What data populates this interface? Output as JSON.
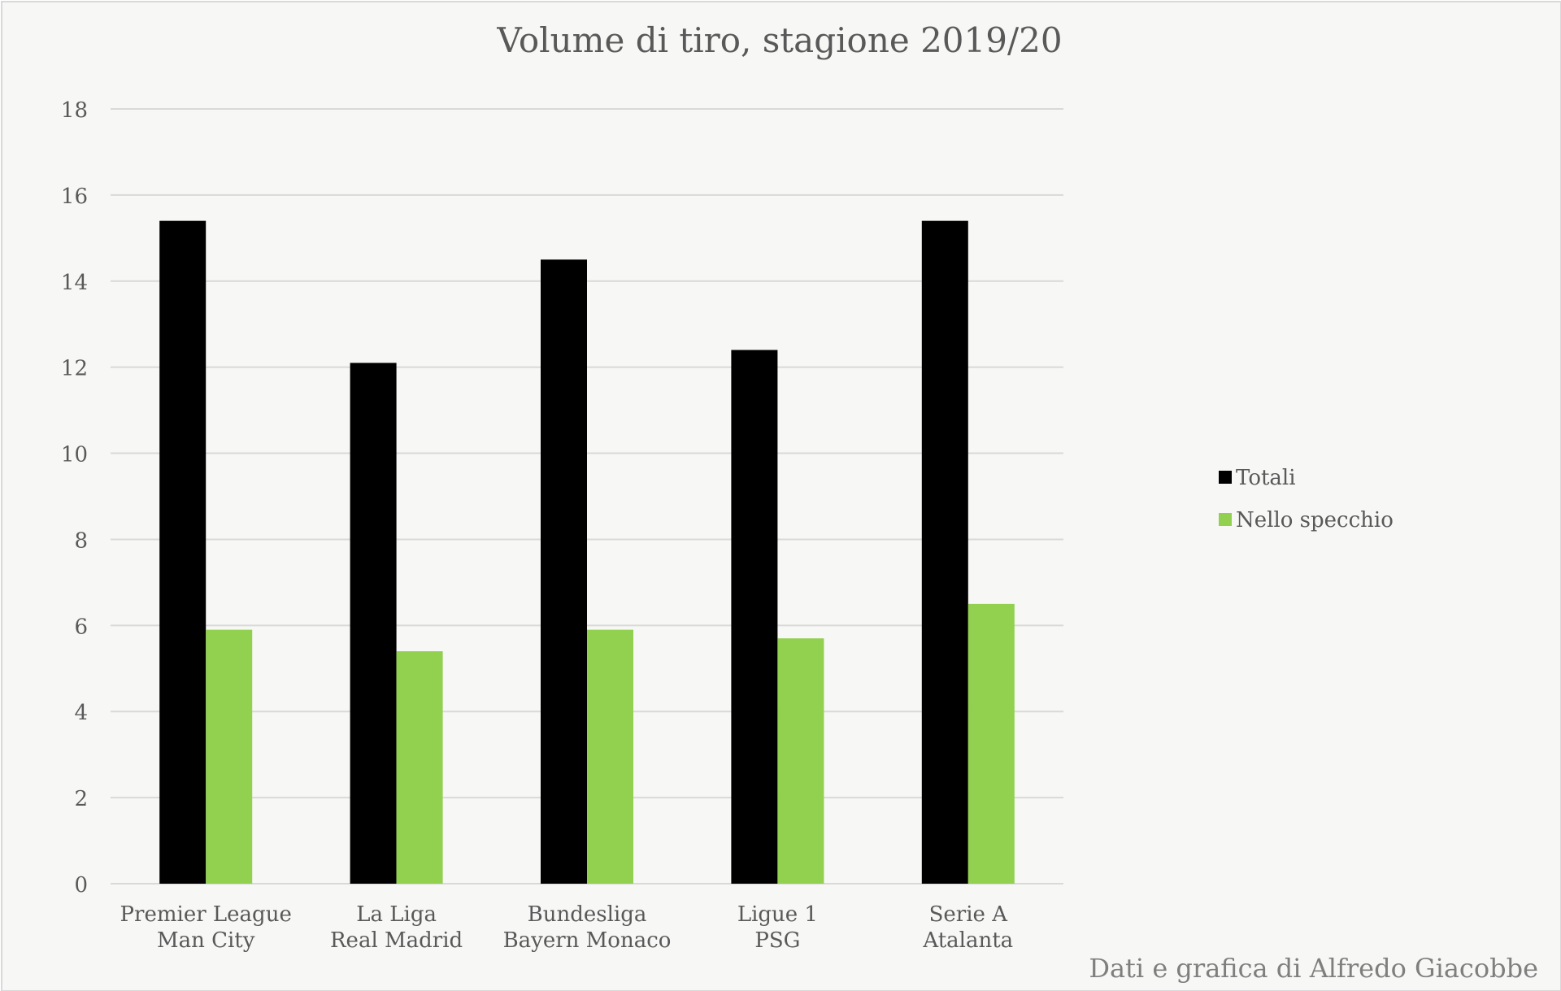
{
  "chart_data": {
    "type": "bar",
    "title": "Volume di tiro, stagione 2019/20",
    "categories": [
      [
        "Premier League",
        "Man City"
      ],
      [
        "La Liga",
        "Real Madrid"
      ],
      [
        "Bundesliga",
        "Bayern Monaco"
      ],
      [
        "Ligue 1",
        "PSG"
      ],
      [
        "Serie A",
        "Atalanta"
      ]
    ],
    "series": [
      {
        "name": "Totali",
        "color": "#000000",
        "values": [
          15.4,
          12.1,
          14.5,
          12.4,
          15.4
        ]
      },
      {
        "name": "Nello specchio",
        "color": "#92d050",
        "values": [
          5.9,
          5.4,
          5.9,
          5.7,
          6.5
        ]
      }
    ],
    "ylim": [
      0,
      18
    ],
    "yticks": [
      0,
      2,
      4,
      6,
      8,
      10,
      12,
      14,
      16,
      18
    ],
    "grid": true,
    "legend": "right",
    "xlabel": "",
    "ylabel": ""
  },
  "credit": "Dati e grafica di Alfredo Giacobbe",
  "colors": {
    "background": "#f7f7f5",
    "grid": "#d9d9d9",
    "text": "#595959"
  }
}
